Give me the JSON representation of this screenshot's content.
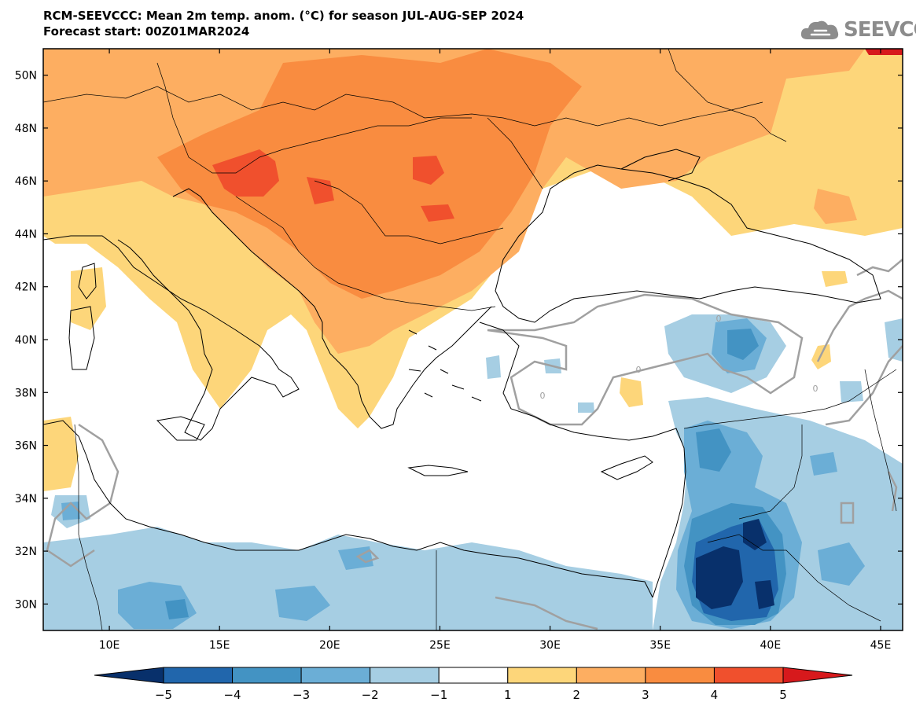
{
  "header": {
    "title_line1": "RCM-SEEVCCC: Mean 2m temp. anom. (°C) for season JUL-AUG-SEP 2024",
    "title_line2": "Forecast start: 00Z01MAR2024"
  },
  "logo": {
    "text": "SEEVCCC",
    "icon": "cloud-icon"
  },
  "map": {
    "lon_range": [
      7,
      46
    ],
    "lat_range": [
      29,
      51
    ],
    "lat_ticks": [
      "50N",
      "48N",
      "46N",
      "44N",
      "42N",
      "40N",
      "38N",
      "36N",
      "34N",
      "32N",
      "30N"
    ],
    "lon_ticks": [
      "10E",
      "15E",
      "20E",
      "25E",
      "30E",
      "35E",
      "40E",
      "45E"
    ],
    "contour_label": "0"
  },
  "colorbar": {
    "labels": [
      "−5",
      "−4",
      "−3",
      "−2",
      "−1",
      "1",
      "2",
      "3",
      "4",
      "5"
    ],
    "colors": [
      "#08306b",
      "#2166ac",
      "#4393c3",
      "#6baed6",
      "#a6cee3",
      "#ffffff",
      "#fdd67a",
      "#fdae61",
      "#f98c40",
      "#f0502d",
      "#d7191c"
    ]
  },
  "palette": {
    "anom_pos_1": "#fdd67a",
    "anom_pos_2": "#fdae61",
    "anom_pos_3": "#f98c40",
    "anom_pos_4": "#f0502d",
    "anom_pos_5": "#d7191c",
    "anom_neg_1": "#a6cee3",
    "anom_neg_2": "#6baed6",
    "anom_neg_3": "#4393c3",
    "anom_neg_4": "#2166ac",
    "anom_neg_5": "#08306b",
    "contour": "#a0a0a0",
    "land": "#ffffff"
  }
}
